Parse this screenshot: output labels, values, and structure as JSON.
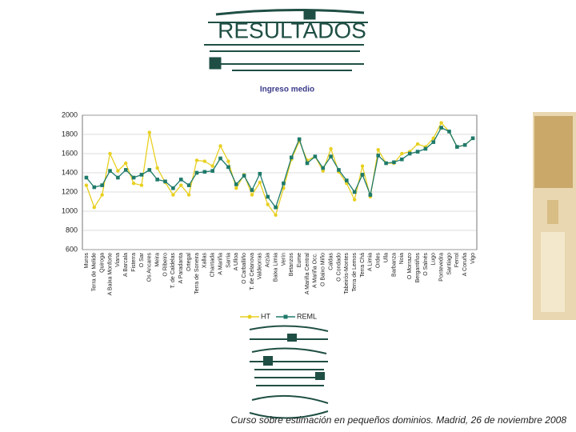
{
  "slide_title": "RESULTADOS",
  "footer": "Curso sobre estimación en pequeños dominios. Madrid, 26 de noviembre 2008",
  "chart_data": {
    "type": "line",
    "title": "Ingreso medio",
    "categories": [
      "Muros",
      "Terra de Melide",
      "Quiroga",
      "A Baixa Monforte",
      "Viana",
      "A Barcala",
      "Fisterra",
      "O Sar",
      "Os Ancares",
      "Meira",
      "O Ribeiro",
      "T. de Caldelas",
      "A Paradanta",
      "Ortegal",
      "Terra de Soneira",
      "Xallas",
      "Chantada",
      "A Mariña",
      "Sarria",
      "A Ulloa",
      "O Carballiño",
      "T. de Celanova",
      "Valdeorras",
      "Arzúa",
      "Baixa Limia",
      "Verín",
      "Betanzos",
      "Eume",
      "A Mariña Central",
      "A Mariña Occ.",
      "O Baixo Miño",
      "Caldas",
      "O Condado",
      "Tabeirós-Montes",
      "Terra de Lemos",
      "Terra Chá",
      "A Limia",
      "Ordes",
      "Ulla",
      "Barbanza",
      "Noia",
      "O Morrazo",
      "Bergantiños",
      "O Salnés",
      "Lugo",
      "Pontevedra",
      "Santiago",
      "Ferrol",
      "A Coruña",
      "Vigo"
    ],
    "series": [
      {
        "name": "HT",
        "color": "#e8d020",
        "values": [
          1270,
          1040,
          1170,
          1600,
          1420,
          1500,
          1290,
          1270,
          1820,
          1450,
          1300,
          1170,
          1270,
          1170,
          1530,
          1520,
          1470,
          1680,
          1520,
          1240,
          1380,
          1170,
          1300,
          1070,
          960,
          1240,
          1540,
          1730,
          1530,
          1570,
          1420,
          1650,
          1410,
          1290,
          1120,
          1470,
          1150,
          1640,
          1500,
          1500,
          1600,
          1620,
          1700,
          1670,
          1760,
          1920,
          1830,
          1670,
          1690,
          1760
        ]
      },
      {
        "name": "REML",
        "color": "#1f7a6a",
        "values": [
          1350,
          1250,
          1270,
          1420,
          1350,
          1430,
          1350,
          1380,
          1430,
          1330,
          1310,
          1240,
          1330,
          1270,
          1400,
          1410,
          1420,
          1550,
          1460,
          1280,
          1370,
          1220,
          1390,
          1150,
          1040,
          1290,
          1560,
          1750,
          1500,
          1570,
          1450,
          1570,
          1430,
          1320,
          1200,
          1380,
          1170,
          1580,
          1500,
          1510,
          1540,
          1600,
          1620,
          1650,
          1720,
          1870,
          1830,
          1670,
          1690,
          1760
        ]
      }
    ],
    "ylim": [
      600,
      2000
    ],
    "yticks": [
      600,
      800,
      1000,
      1200,
      1400,
      1600,
      1800,
      2000
    ],
    "grid": true
  }
}
